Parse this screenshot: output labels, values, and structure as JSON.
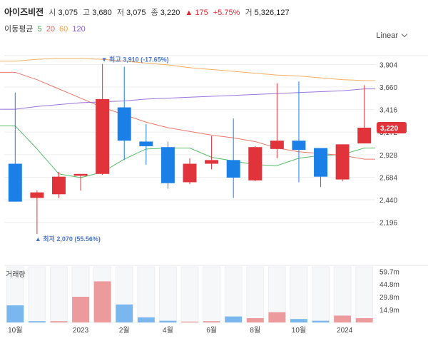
{
  "header": {
    "name": "아이즈비전",
    "open_label": "시",
    "open": "3,075",
    "high_label": "고",
    "high": "3,680",
    "low_label": "저",
    "low": "3,075",
    "close_label": "종",
    "close": "3,220",
    "change": "▲ 175",
    "change_pct": "+5.75%",
    "volume_label": "거",
    "volume": "5,326,127"
  },
  "ma_legend": {
    "title": "이동평균",
    "items": [
      {
        "label": "5",
        "color": "#36b04a"
      },
      {
        "label": "20",
        "color": "#e8604f"
      },
      {
        "label": "60",
        "color": "#f2a144"
      },
      {
        "label": "120",
        "color": "#8a5cd6"
      }
    ]
  },
  "scale_label": "Linear",
  "chart_data": [
    {
      "type": "candlestick",
      "ylim": [
        1900,
        4000
      ],
      "y_ticks": [
        "3,904",
        "3,660",
        "3,416",
        "3,172",
        "2,928",
        "2,684",
        "2,440",
        "2,196"
      ],
      "y_tick_values": [
        3904,
        3660,
        3416,
        3172,
        2928,
        2684,
        2440,
        2196
      ],
      "x_tick_labels": [
        "10월",
        "2023",
        "2월",
        "4월",
        "6월",
        "8월",
        "10월",
        "2024"
      ],
      "annotations": {
        "max": "▼ 최고 3,910 (-17.65%)",
        "max_value": 3910,
        "min": "▲ 최저 2,070 (55.56%)",
        "min_value": 2070
      },
      "current_price": "3,220",
      "current_value": 3220,
      "colors": {
        "up": "#e0333a",
        "down": "#1a7fe6"
      },
      "candles": [
        {
          "o": 2830,
          "h": 3600,
          "l": 2420,
          "c": 2420
        },
        {
          "o": 2460,
          "h": 2540,
          "l": 2070,
          "c": 2520
        },
        {
          "o": 2500,
          "h": 2740,
          "l": 2460,
          "c": 2690
        },
        {
          "o": 2700,
          "h": 2710,
          "l": 2540,
          "c": 2720
        },
        {
          "o": 2720,
          "h": 3910,
          "l": 2710,
          "c": 3530
        },
        {
          "o": 3440,
          "h": 3880,
          "l": 2870,
          "c": 3080
        },
        {
          "o": 3070,
          "h": 3260,
          "l": 2820,
          "c": 3020
        },
        {
          "o": 3010,
          "h": 3070,
          "l": 2560,
          "c": 2620
        },
        {
          "o": 2630,
          "h": 2890,
          "l": 2610,
          "c": 2830
        },
        {
          "o": 2830,
          "h": 3130,
          "l": 2770,
          "c": 2870
        },
        {
          "o": 2870,
          "h": 3320,
          "l": 2460,
          "c": 2680
        },
        {
          "o": 2650,
          "h": 3020,
          "l": 2640,
          "c": 3010
        },
        {
          "o": 2990,
          "h": 3700,
          "l": 2890,
          "c": 3080
        },
        {
          "o": 3080,
          "h": 3720,
          "l": 2630,
          "c": 2980
        },
        {
          "o": 3000,
          "h": 3000,
          "l": 2580,
          "c": 2690
        },
        {
          "o": 2660,
          "h": 3040,
          "l": 2640,
          "c": 3040
        },
        {
          "o": 3050,
          "h": 3680,
          "l": 3050,
          "c": 3220
        }
      ],
      "ma_series": [
        {
          "name": "5",
          "color": "#36b04a",
          "values": [
            3240,
            2990,
            2720,
            2680,
            2740,
            2880,
            2990,
            3000,
            3000,
            2900,
            2860,
            2820,
            2810,
            2890,
            2920,
            2930,
            3000
          ]
        },
        {
          "name": "20",
          "color": "#e8604f",
          "values": [
            3820,
            3740,
            3640,
            3540,
            3440,
            3360,
            3280,
            3220,
            3180,
            3140,
            3110,
            3070,
            3000,
            2960,
            2940,
            2920,
            2880
          ]
        },
        {
          "name": "60",
          "color": "#f2a144",
          "values": [
            3940,
            3960,
            3970,
            3970,
            3960,
            3940,
            3920,
            3900,
            3870,
            3850,
            3830,
            3810,
            3790,
            3780,
            3760,
            3740,
            3730
          ]
        },
        {
          "name": "120",
          "color": "#8a5cd6",
          "values": [
            3420,
            3450,
            3470,
            3490,
            3500,
            3510,
            3530,
            3540,
            3550,
            3560,
            3570,
            3580,
            3590,
            3600,
            3610,
            3620,
            3640
          ]
        }
      ]
    },
    {
      "type": "bar",
      "title": "거래량",
      "ylim": [
        0,
        65
      ],
      "y_ticks": [
        "59.7m",
        "44.8m",
        "29.8m",
        "14.9m"
      ],
      "y_tick_values": [
        59.7,
        44.8,
        29.8,
        14.9
      ],
      "values": [
        20,
        1.5,
        1.5,
        30,
        48,
        21,
        6,
        2,
        1,
        1.5,
        7,
        5,
        12,
        4,
        2,
        8,
        5
      ],
      "directions": [
        "down",
        "down",
        "up",
        "up",
        "up",
        "down",
        "down",
        "down",
        "up",
        "up",
        "down",
        "up",
        "up",
        "down",
        "down",
        "up",
        "up"
      ]
    }
  ]
}
